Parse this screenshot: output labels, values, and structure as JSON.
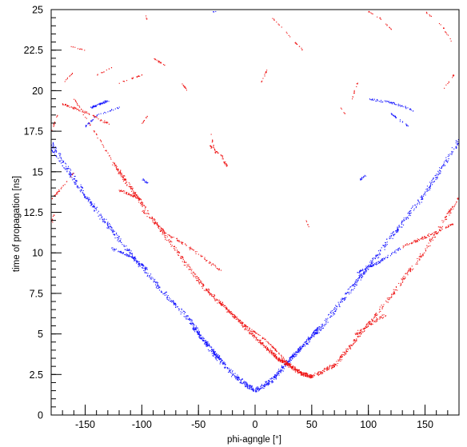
{
  "chart_data": {
    "type": "scatter",
    "xlabel": "phi-agngle [°]",
    "ylabel": "time of propagation [ns]",
    "xlim": [
      -180,
      180
    ],
    "ylim": [
      0,
      25
    ],
    "x_ticks": [
      -150,
      -100,
      -50,
      0,
      50,
      100,
      150
    ],
    "y_ticks": [
      0,
      2.5,
      5,
      7.5,
      10,
      12.5,
      15,
      17.5,
      20,
      22.5,
      25
    ],
    "y_tick_labels": [
      "0",
      "2.5",
      "5",
      "7.5",
      "10",
      "12.5",
      "15",
      "17.5",
      "20",
      "22.5",
      "25"
    ],
    "x_minor_step": 10,
    "y_minor_step": 0.5,
    "grid": false,
    "colors": {
      "blue": "#1414ff",
      "red": "#ee1111",
      "frame": "#000000"
    },
    "series": [
      {
        "color": "blue",
        "curves": [
          {
            "kind": "poly",
            "points": [
              [
                -180,
                16.8
              ],
              [
                -150,
                13.5
              ],
              [
                -120,
                10.8
              ],
              [
                -90,
                8.3
              ],
              [
                -60,
                6.0
              ],
              [
                -40,
                4.1
              ],
              [
                -20,
                2.5
              ],
              [
                0,
                1.5
              ],
              [
                15,
                2.2
              ],
              [
                30,
                3.4
              ],
              [
                60,
                5.6
              ],
              [
                90,
                8.3
              ],
              [
                120,
                11.0
              ],
              [
                150,
                13.7
              ],
              [
                180,
                17.0
              ]
            ],
            "width": 2.4,
            "count": 1400
          },
          {
            "kind": "poly",
            "points": [
              [
                -180,
                16.4
              ],
              [
                -160,
                14.4
              ],
              [
                -140,
                12.6
              ]
            ],
            "width": 0.8,
            "count": 60
          },
          {
            "kind": "poly",
            "points": [
              [
                -127,
                10.3
              ],
              [
                -110,
                9.8
              ],
              [
                -95,
                9.0
              ]
            ],
            "width": 1.4,
            "count": 90
          },
          {
            "kind": "poly",
            "points": [
              [
                -55,
                5.4
              ],
              [
                -40,
                4.2
              ],
              [
                -30,
                3.4
              ]
            ],
            "width": 1.4,
            "count": 80
          },
          {
            "kind": "poly",
            "points": [
              [
                -145,
                19.0
              ],
              [
                -130,
                19.4
              ]
            ],
            "width": 1.2,
            "count": 60
          },
          {
            "kind": "poly",
            "points": [
              [
                -150,
                17.8
              ],
              [
                -140,
                18.5
              ],
              [
                -120,
                19.0
              ]
            ],
            "width": 0.9,
            "count": 40
          },
          {
            "kind": "poly",
            "points": [
              [
                -100,
                14.6
              ],
              [
                -95,
                14.3
              ]
            ],
            "width": 1.0,
            "count": 15
          },
          {
            "kind": "poly",
            "points": [
              [
                30,
                3.5
              ],
              [
                45,
                4.5
              ],
              [
                55,
                5.4
              ]
            ],
            "width": 1.4,
            "count": 80
          },
          {
            "kind": "poly",
            "points": [
              [
                90,
                8.8
              ],
              [
                110,
                9.5
              ],
              [
                128,
                10.3
              ]
            ],
            "width": 1.4,
            "count": 90
          },
          {
            "kind": "poly",
            "points": [
              [
                100,
                19.5
              ],
              [
                120,
                19.3
              ],
              [
                140,
                18.8
              ]
            ],
            "width": 1.2,
            "count": 60
          },
          {
            "kind": "poly",
            "points": [
              [
                120,
                18.6
              ],
              [
                135,
                17.8
              ]
            ],
            "width": 0.8,
            "count": 25
          },
          {
            "kind": "poly",
            "points": [
              [
                92,
                14.5
              ],
              [
                97,
                14.8
              ]
            ],
            "width": 1.0,
            "count": 15
          },
          {
            "kind": "poly",
            "points": [
              [
                -38,
                24.9
              ],
              [
                -35,
                24.9
              ]
            ],
            "width": 0.5,
            "count": 4
          }
        ]
      },
      {
        "color": "red",
        "curves": [
          {
            "kind": "poly",
            "points": [
              [
                -125,
                15.5
              ],
              [
                -100,
                13.0
              ],
              [
                -50,
                8.2
              ],
              [
                -20,
                6.2
              ],
              [
                0,
                4.8
              ],
              [
                20,
                3.5
              ],
              [
                30,
                3.1
              ],
              [
                40,
                2.6
              ],
              [
                50,
                2.4
              ],
              [
                70,
                3.1
              ],
              [
                90,
                4.8
              ],
              [
                120,
                7.4
              ],
              [
                150,
                10.2
              ],
              [
                180,
                13.5
              ]
            ],
            "width": 2.0,
            "count": 1100
          },
          {
            "kind": "poly",
            "points": [
              [
                -160,
                19.5
              ],
              [
                -120,
                15.0
              ],
              [
                -80,
                11.2
              ],
              [
                -40,
                7.5
              ],
              [
                -10,
                5.6
              ],
              [
                10,
                4.6
              ],
              [
                25,
                3.5
              ]
            ],
            "width": 0.8,
            "count": 260
          },
          {
            "kind": "poly",
            "points": [
              [
                -120,
                13.9
              ],
              [
                -100,
                13.3
              ]
            ],
            "width": 1.4,
            "count": 50
          },
          {
            "kind": "poly",
            "points": [
              [
                -100,
                12.6
              ],
              [
                -80,
                11.3
              ],
              [
                -55,
                10.2
              ],
              [
                -30,
                8.9
              ]
            ],
            "width": 1.3,
            "count": 120
          },
          {
            "kind": "poly",
            "points": [
              [
                -180,
                13.3
              ],
              [
                -160,
                15.0
              ]
            ],
            "width": 0.8,
            "count": 30
          },
          {
            "kind": "poly",
            "points": [
              [
                -180,
                11.7
              ],
              [
                -178,
                12.4
              ]
            ],
            "width": 0.8,
            "count": 10
          },
          {
            "kind": "poly",
            "points": [
              [
                -170,
                19.2
              ],
              [
                -150,
                18.7
              ],
              [
                -130,
                18.0
              ]
            ],
            "width": 1.2,
            "count": 70
          },
          {
            "kind": "poly",
            "points": [
              [
                -120,
                20.5
              ],
              [
                -100,
                21.0
              ]
            ],
            "width": 0.6,
            "count": 20
          },
          {
            "kind": "poly",
            "points": [
              [
                -90,
                22.0
              ],
              [
                -80,
                21.6
              ]
            ],
            "width": 0.7,
            "count": 18
          },
          {
            "kind": "poly",
            "points": [
              [
                -65,
                20.5
              ],
              [
                -60,
                20.0
              ]
            ],
            "width": 0.6,
            "count": 12
          },
          {
            "kind": "poly",
            "points": [
              [
                -40,
                17.5
              ],
              [
                -35,
                16.0
              ]
            ],
            "width": 0.6,
            "count": 15
          },
          {
            "kind": "poly",
            "points": [
              [
                -40,
                16.6
              ],
              [
                -30,
                16.0
              ],
              [
                -25,
                15.3
              ]
            ],
            "width": 1.0,
            "count": 40
          },
          {
            "kind": "poly",
            "points": [
              [
                -180,
                17.5
              ],
              [
                -175,
                18.5
              ]
            ],
            "width": 0.6,
            "count": 12
          },
          {
            "kind": "poly",
            "points": [
              [
                -165,
                22.8
              ],
              [
                -150,
                22.5
              ]
            ],
            "width": 0.5,
            "count": 10
          },
          {
            "kind": "poly",
            "points": [
              [
                -140,
                21.0
              ],
              [
                -125,
                21.5
              ]
            ],
            "width": 0.5,
            "count": 12
          },
          {
            "kind": "poly",
            "points": [
              [
                -100,
                18.0
              ],
              [
                -95,
                18.5
              ]
            ],
            "width": 0.6,
            "count": 10
          },
          {
            "kind": "poly",
            "points": [
              [
                -170,
                20.5
              ],
              [
                -160,
                21.2
              ]
            ],
            "width": 0.5,
            "count": 10
          },
          {
            "kind": "poly",
            "points": [
              [
                -97,
                24.8
              ],
              [
                -95,
                24.2
              ]
            ],
            "width": 0.5,
            "count": 4
          },
          {
            "kind": "poly",
            "points": [
              [
                15,
                24.5
              ],
              [
                25,
                23.8
              ],
              [
                35,
                23.0
              ],
              [
                42,
                22.5
              ]
            ],
            "width": 0.5,
            "count": 25
          },
          {
            "kind": "poly",
            "points": [
              [
                5,
                20.5
              ],
              [
                10,
                21.3
              ]
            ],
            "width": 0.6,
            "count": 12
          },
          {
            "kind": "poly",
            "points": [
              [
                88,
                5.0
              ],
              [
                100,
                5.6
              ],
              [
                115,
                6.2
              ]
            ],
            "width": 1.8,
            "count": 70
          },
          {
            "kind": "poly",
            "points": [
              [
                130,
                10.4
              ],
              [
                150,
                11.0
              ],
              [
                175,
                11.8
              ]
            ],
            "width": 1.6,
            "count": 90
          },
          {
            "kind": "poly",
            "points": [
              [
                150,
                24.9
              ],
              [
                165,
                24.0
              ],
              [
                175,
                22.8
              ]
            ],
            "width": 0.5,
            "count": 20
          },
          {
            "kind": "poly",
            "points": [
              [
                100,
                24.9
              ],
              [
                110,
                24.5
              ],
              [
                120,
                23.8
              ]
            ],
            "width": 0.5,
            "count": 20
          },
          {
            "kind": "poly",
            "points": [
              [
                85,
                19.5
              ],
              [
                90,
                20.5
              ]
            ],
            "width": 0.6,
            "count": 12
          },
          {
            "kind": "poly",
            "points": [
              [
                165,
                20.0
              ],
              [
                175,
                21.0
              ]
            ],
            "width": 0.5,
            "count": 10
          },
          {
            "kind": "poly",
            "points": [
              [
                45,
                12.0
              ],
              [
                48,
                11.4
              ]
            ],
            "width": 0.4,
            "count": 5
          },
          {
            "kind": "poly",
            "points": [
              [
                75,
                19.0
              ],
              [
                80,
                18.5
              ]
            ],
            "width": 0.4,
            "count": 5
          }
        ]
      }
    ]
  }
}
